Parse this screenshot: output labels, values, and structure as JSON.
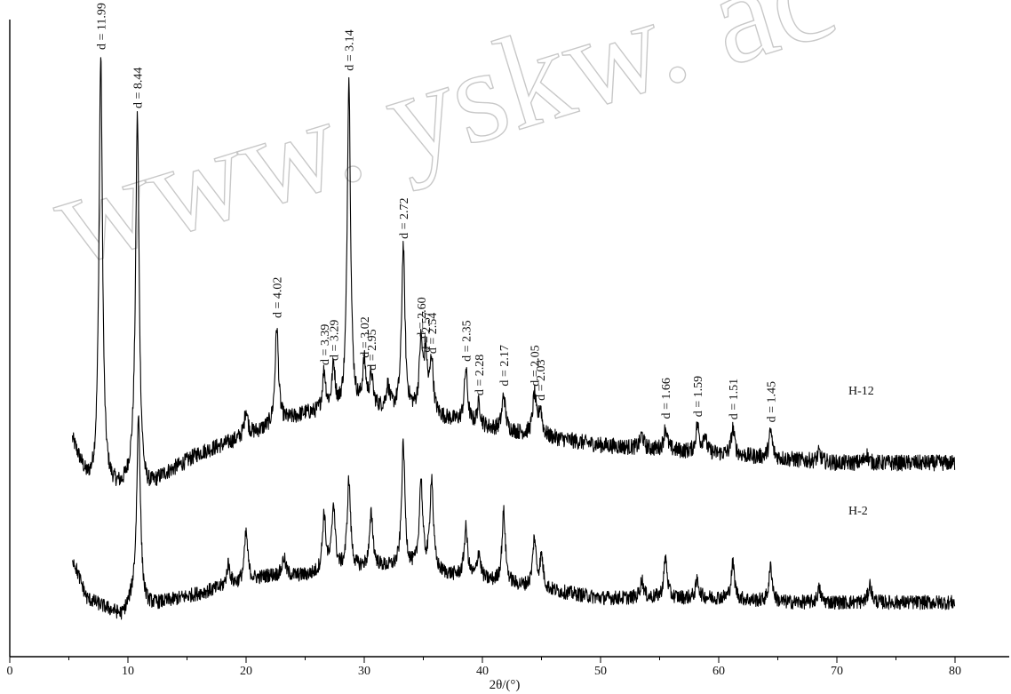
{
  "chart_data": {
    "type": "line",
    "title": "",
    "xlabel": "2θ/(°)",
    "ylabel": "",
    "xlim": [
      0,
      85
    ],
    "x_ticks": [
      0,
      10,
      20,
      30,
      40,
      50,
      60,
      70,
      80
    ],
    "x_range_of_data": [
      5.3,
      80
    ],
    "watermark": "www. yskw. ac",
    "series": [
      {
        "name": "H-12",
        "baseline": [
          [
            5.3,
            0.14
          ],
          [
            6.5,
            0.05
          ],
          [
            7.2,
            0.03
          ],
          [
            9.5,
            0.03
          ],
          [
            10.5,
            0.06
          ],
          [
            11.5,
            0.02
          ],
          [
            13,
            0.06
          ],
          [
            16,
            0.11
          ],
          [
            19,
            0.14
          ],
          [
            22,
            0.17
          ],
          [
            25,
            0.2
          ],
          [
            28,
            0.2
          ],
          [
            31,
            0.21
          ],
          [
            35,
            0.2
          ],
          [
            40,
            0.17
          ],
          [
            45,
            0.15
          ],
          [
            50,
            0.13
          ],
          [
            55,
            0.12
          ],
          [
            60,
            0.11
          ],
          [
            65,
            0.1
          ],
          [
            70,
            0.09
          ],
          [
            75,
            0.09
          ],
          [
            80,
            0.09
          ]
        ],
        "peaks": [
          [
            7.7,
            0.97
          ],
          [
            10.8,
            0.82
          ],
          [
            20.0,
            0.06
          ],
          [
            22.6,
            0.22
          ],
          [
            26.6,
            0.09
          ],
          [
            27.4,
            0.1
          ],
          [
            28.7,
            0.75
          ],
          [
            30.0,
            0.1
          ],
          [
            30.6,
            0.07
          ],
          [
            32.0,
            0.05
          ],
          [
            33.3,
            0.37
          ],
          [
            34.8,
            0.15
          ],
          [
            35.2,
            0.12
          ],
          [
            35.7,
            0.12
          ],
          [
            38.6,
            0.12
          ],
          [
            39.7,
            0.05
          ],
          [
            41.8,
            0.08
          ],
          [
            44.4,
            0.09
          ],
          [
            44.9,
            0.06
          ],
          [
            53.5,
            0.03
          ],
          [
            55.5,
            0.05
          ],
          [
            58.2,
            0.06
          ],
          [
            58.8,
            0.04
          ],
          [
            61.2,
            0.06
          ],
          [
            64.4,
            0.06
          ],
          [
            68.5,
            0.02
          ],
          [
            72.5,
            0.02
          ]
        ],
        "noise": 0.018,
        "peak_labels": [
          {
            "x": 7.7,
            "text": "d = 11.99"
          },
          {
            "x": 10.8,
            "text": "d = 8.44"
          },
          {
            "x": 22.6,
            "text": "d = 4.02"
          },
          {
            "x": 26.6,
            "text": "d = 3.39"
          },
          {
            "x": 27.4,
            "text": "d = 3.29"
          },
          {
            "x": 28.7,
            "text": "d = 3.14"
          },
          {
            "x": 30.0,
            "text": "d = 3.02"
          },
          {
            "x": 30.6,
            "text": "d = 2.95"
          },
          {
            "x": 33.3,
            "text": "d = 2.72"
          },
          {
            "x": 34.8,
            "text": "d = 2.60"
          },
          {
            "x": 35.2,
            "text": "d = 2.57"
          },
          {
            "x": 35.7,
            "text": "d = 2.54"
          },
          {
            "x": 38.6,
            "text": "d = 2.35"
          },
          {
            "x": 39.7,
            "text": "d = 2.28"
          },
          {
            "x": 41.8,
            "text": "d = 2.17"
          },
          {
            "x": 44.4,
            "text": "d = 2.05"
          },
          {
            "x": 44.9,
            "text": "d = 2.03"
          },
          {
            "x": 55.5,
            "text": "d = 1.66"
          },
          {
            "x": 58.2,
            "text": "d = 1.59"
          },
          {
            "x": 61.2,
            "text": "d = 1.51"
          },
          {
            "x": 64.4,
            "text": "d = 1.45"
          }
        ]
      },
      {
        "name": "H-2",
        "baseline": [
          [
            5.3,
            0.14
          ],
          [
            6.5,
            0.05
          ],
          [
            8,
            0.03
          ],
          [
            9.5,
            0.01
          ],
          [
            10.5,
            0.05
          ],
          [
            11.5,
            0.03
          ],
          [
            13,
            0.04
          ],
          [
            16,
            0.06
          ],
          [
            19,
            0.08
          ],
          [
            22,
            0.1
          ],
          [
            25,
            0.1
          ],
          [
            28,
            0.11
          ],
          [
            31,
            0.12
          ],
          [
            35,
            0.11
          ],
          [
            40,
            0.09
          ],
          [
            45,
            0.07
          ],
          [
            50,
            0.05
          ],
          [
            55,
            0.05
          ],
          [
            60,
            0.05
          ],
          [
            65,
            0.04
          ],
          [
            70,
            0.04
          ],
          [
            75,
            0.04
          ],
          [
            80,
            0.04
          ]
        ],
        "peaks": [
          [
            10.9,
            0.42
          ],
          [
            18.5,
            0.05
          ],
          [
            20.0,
            0.11
          ],
          [
            23.2,
            0.04
          ],
          [
            26.6,
            0.13
          ],
          [
            27.4,
            0.15
          ],
          [
            28.7,
            0.2
          ],
          [
            30.6,
            0.12
          ],
          [
            33.3,
            0.28
          ],
          [
            34.8,
            0.2
          ],
          [
            35.7,
            0.21
          ],
          [
            38.6,
            0.11
          ],
          [
            39.7,
            0.06
          ],
          [
            41.8,
            0.16
          ],
          [
            44.4,
            0.11
          ],
          [
            45.0,
            0.07
          ],
          [
            53.5,
            0.04
          ],
          [
            55.5,
            0.09
          ],
          [
            58.2,
            0.04
          ],
          [
            61.2,
            0.08
          ],
          [
            64.4,
            0.08
          ],
          [
            68.5,
            0.03
          ],
          [
            72.8,
            0.04
          ]
        ],
        "noise": 0.016,
        "peak_labels": []
      }
    ]
  }
}
